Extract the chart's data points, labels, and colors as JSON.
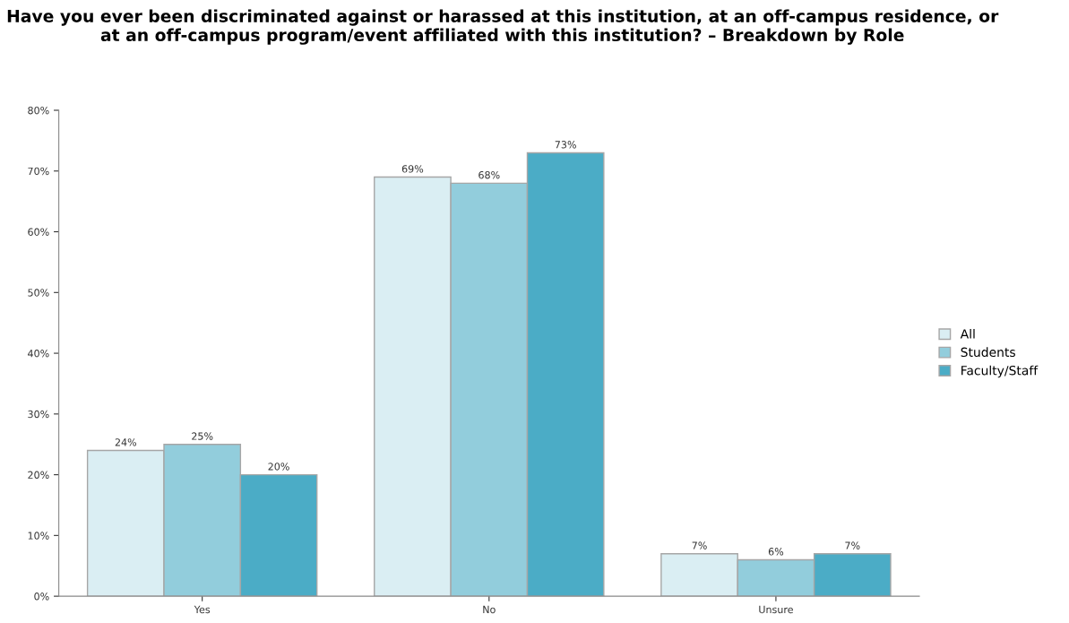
{
  "chart_data": {
    "type": "bar",
    "title": "Have you ever been discriminated against or harassed at this institution, at an off-campus residence, or at an off-campus program/event affiliated with this institution? – Breakdown by Role",
    "categories": [
      "Yes",
      "No",
      "Unsure"
    ],
    "series": [
      {
        "name": "All",
        "color": "#daeef3",
        "values": [
          24,
          69,
          7
        ],
        "value_labels": [
          "24%",
          "69%",
          "7%"
        ]
      },
      {
        "name": "Students",
        "color": "#92cddc",
        "values": [
          25,
          68,
          6
        ],
        "value_labels": [
          "25%",
          "68%",
          "6%"
        ]
      },
      {
        "name": "Faculty/Staff",
        "color": "#4bacc6",
        "values": [
          20,
          73,
          7
        ],
        "value_labels": [
          "20%",
          "73%",
          "7%"
        ]
      }
    ],
    "ylim": [
      0,
      80
    ],
    "yticks": [
      {
        "value": 0,
        "label": "0%"
      },
      {
        "value": 10,
        "label": "10%"
      },
      {
        "value": 20,
        "label": "20%"
      },
      {
        "value": 30,
        "label": "30%"
      },
      {
        "value": 40,
        "label": "40%"
      },
      {
        "value": 50,
        "label": "50%"
      },
      {
        "value": 60,
        "label": "60%"
      },
      {
        "value": 70,
        "label": "70%"
      },
      {
        "value": 80,
        "label": "80%"
      }
    ],
    "grid": false,
    "legend": "right"
  }
}
